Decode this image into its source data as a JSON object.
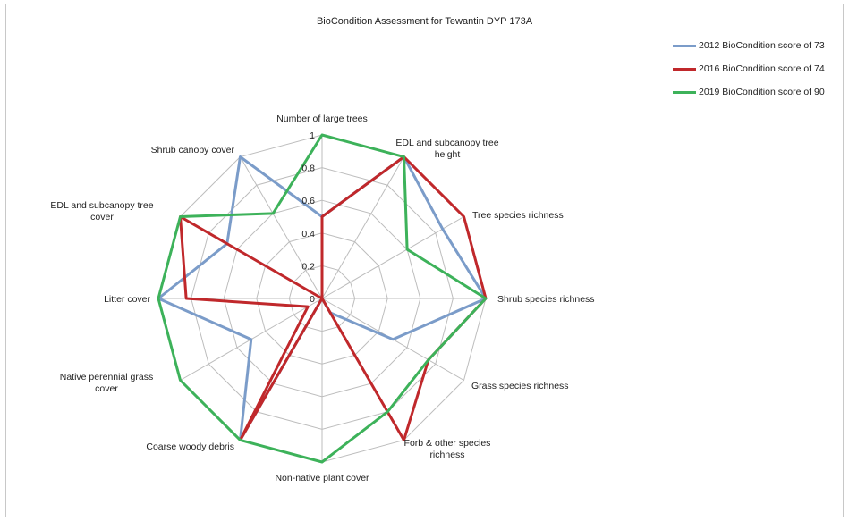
{
  "chart_data": {
    "type": "radar",
    "title": "BioCondition Assessment for Tewantin DYP 173A",
    "rlim": [
      0,
      1
    ],
    "radial_ticks": [
      "0",
      "0.2",
      "0.4",
      "0.6",
      "0.8",
      "1"
    ],
    "categories": [
      "Number of large trees",
      "EDL and subcanopy tree height",
      "Tree species richness",
      "Shrub species richness",
      "Grass species richness",
      "Forb & other species richness",
      "Non-native plant cover",
      "Coarse woody debris",
      "Native perennial grass cover",
      "Litter cover",
      "EDL and subcanopy tree cover",
      "Shrub canopy cover"
    ],
    "series": [
      {
        "name": "2012 BioCondition score of 73",
        "color": "#7b9cc9",
        "values": [
          0.5,
          1.0,
          0.85,
          1.0,
          0.5,
          0.1,
          0.0,
          1.0,
          0.5,
          1.0,
          0.67,
          1.0
        ]
      },
      {
        "name": "2016 BioCondition score of 74",
        "color": "#c0282b",
        "values": [
          0.5,
          1.0,
          1.0,
          1.0,
          0.75,
          1.0,
          0.0,
          1.0,
          0.1,
          0.83,
          1.0,
          0.0
        ]
      },
      {
        "name": "2019 BioCondition score of 90",
        "color": "#3db25a",
        "values": [
          1.0,
          1.0,
          0.6,
          1.0,
          0.75,
          0.8,
          1.0,
          1.0,
          1.0,
          1.0,
          1.0,
          0.6
        ]
      }
    ],
    "legend_position": "top-right",
    "grid": true
  }
}
